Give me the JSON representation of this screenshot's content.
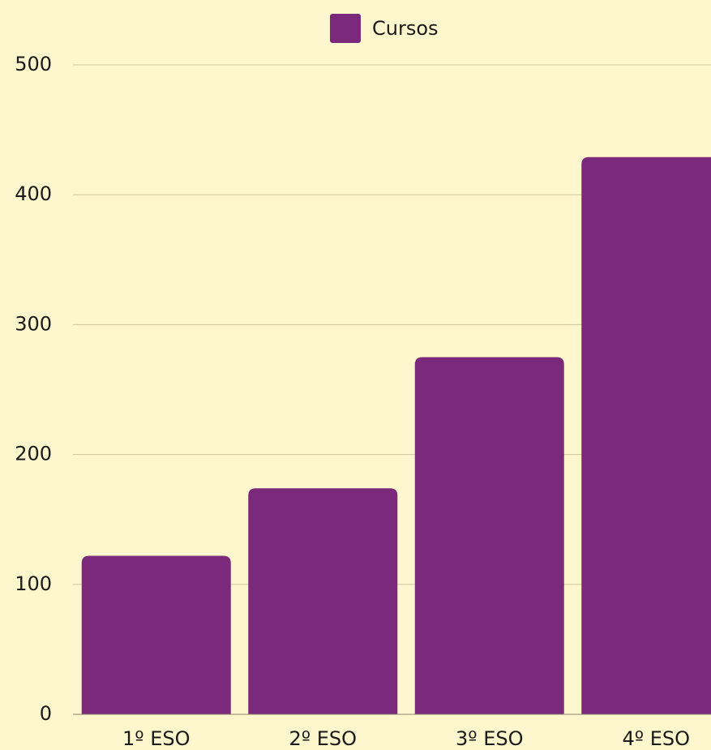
{
  "chart_data": {
    "type": "bar",
    "categories": [
      "1º ESO",
      "2º ESO",
      "3º ESO",
      "4º ESO"
    ],
    "series": [
      {
        "name": "Cursos",
        "color": "#7b2a7b",
        "values": [
          122,
          174,
          275,
          429
        ]
      }
    ],
    "ylim": [
      0,
      500
    ],
    "yticks": [
      0,
      100,
      200,
      300,
      400,
      500
    ],
    "grid": true,
    "legend": "top"
  }
}
